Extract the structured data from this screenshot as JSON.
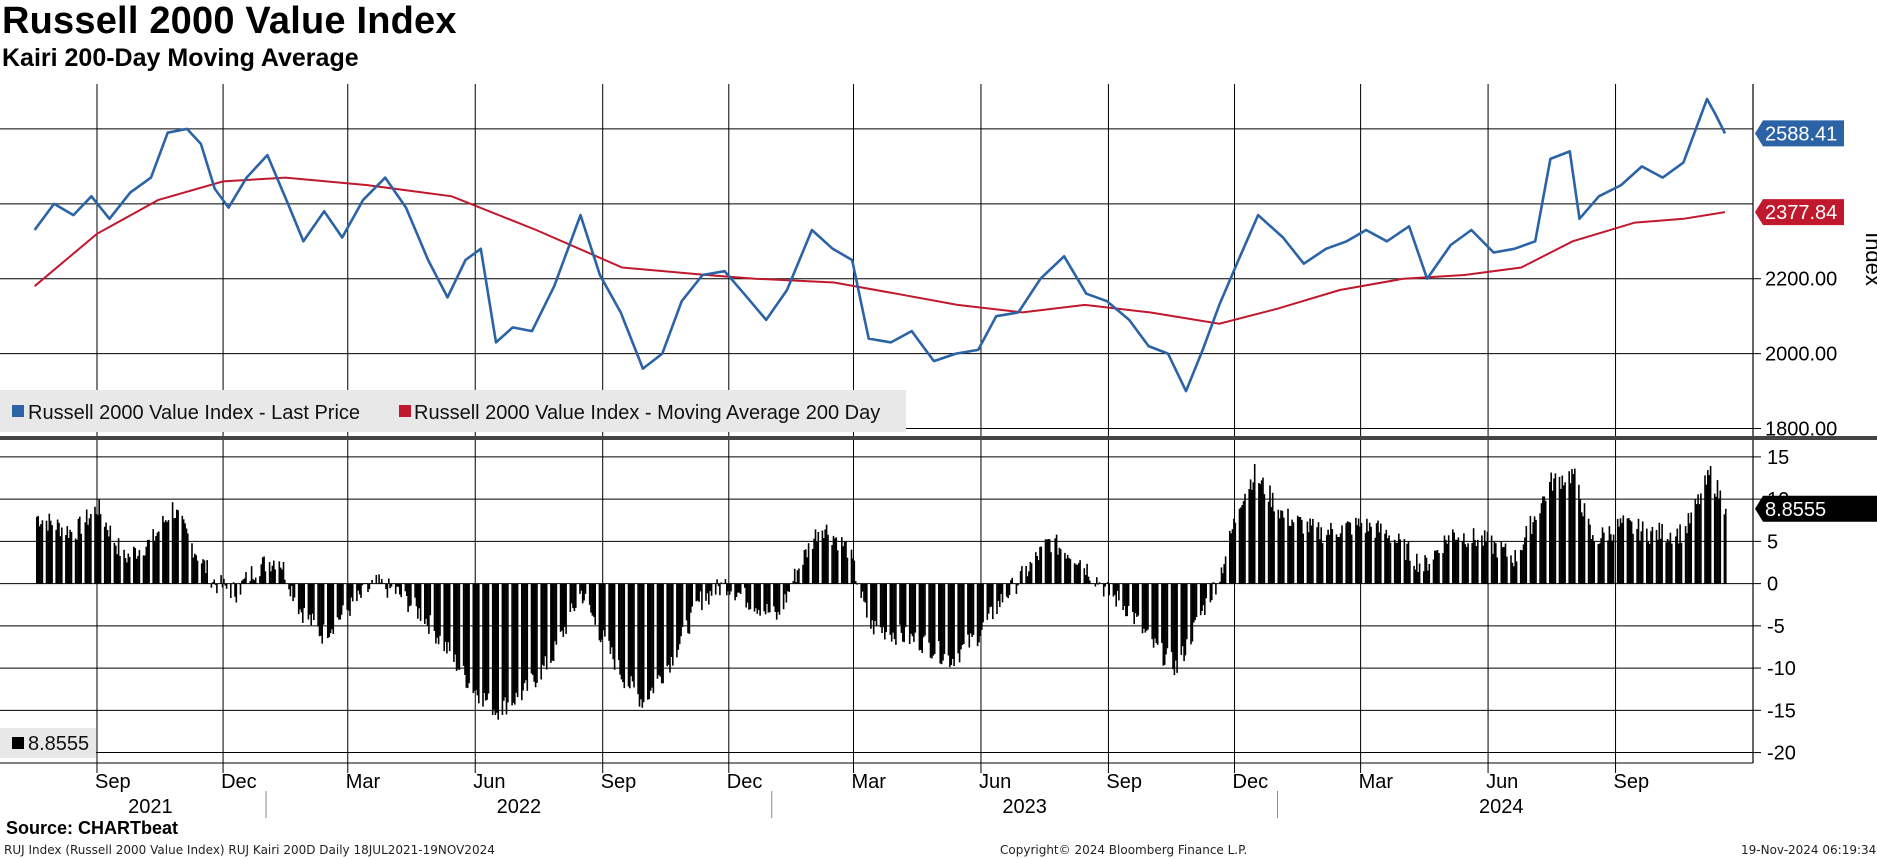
{
  "header": {
    "title": "Russell 2000 Value Index",
    "subtitle": "Kairi 200-Day Moving Average"
  },
  "footer": {
    "source": "Source: CHARTbeat",
    "left": "RUJ Index (Russell 2000 Value Index) RUJ Kairi 200D  Daily 18JUL2021-19NOV2024",
    "center": "Copyright© 2024 Bloomberg Finance L.P.",
    "right": "19-Nov-2024 06:19:34"
  },
  "colors": {
    "price": "#2b63a6",
    "ma": "#c0182c",
    "kairi": "#000000",
    "grid": "#000000"
  },
  "chart_data": [
    {
      "type": "line",
      "title": "",
      "ylabel": "Index",
      "ylim": [
        1780,
        2720
      ],
      "yticks": [
        1800,
        2000,
        2200
      ],
      "ytick_labels": [
        "1800.00",
        "2000.00",
        "2200.00"
      ],
      "legend_position": "bottom-left",
      "series": [
        {
          "name": "Russell 2000 Value Index - Last Price",
          "color": "#2b63a6",
          "last_value_label": "2588.41",
          "points": [
            [
              "2021-07-18",
              2330
            ],
            [
              "2021-08-01",
              2400
            ],
            [
              "2021-08-15",
              2370
            ],
            [
              "2021-08-28",
              2420
            ],
            [
              "2021-09-10",
              2360
            ],
            [
              "2021-09-25",
              2430
            ],
            [
              "2021-10-10",
              2470
            ],
            [
              "2021-10-22",
              2590
            ],
            [
              "2021-11-05",
              2600
            ],
            [
              "2021-11-15",
              2560
            ],
            [
              "2021-11-25",
              2440
            ],
            [
              "2021-12-05",
              2390
            ],
            [
              "2021-12-18",
              2470
            ],
            [
              "2022-01-02",
              2530
            ],
            [
              "2022-01-18",
              2390
            ],
            [
              "2022-01-28",
              2300
            ],
            [
              "2022-02-12",
              2380
            ],
            [
              "2022-02-25",
              2310
            ],
            [
              "2022-03-12",
              2410
            ],
            [
              "2022-03-28",
              2470
            ],
            [
              "2022-04-12",
              2390
            ],
            [
              "2022-04-28",
              2250
            ],
            [
              "2022-05-12",
              2150
            ],
            [
              "2022-05-25",
              2250
            ],
            [
              "2022-06-05",
              2280
            ],
            [
              "2022-06-16",
              2030
            ],
            [
              "2022-06-28",
              2070
            ],
            [
              "2022-07-12",
              2060
            ],
            [
              "2022-07-28",
              2180
            ],
            [
              "2022-08-16",
              2370
            ],
            [
              "2022-08-30",
              2210
            ],
            [
              "2022-09-14",
              2110
            ],
            [
              "2022-09-30",
              1960
            ],
            [
              "2022-10-14",
              2000
            ],
            [
              "2022-10-28",
              2140
            ],
            [
              "2022-11-12",
              2210
            ],
            [
              "2022-11-28",
              2220
            ],
            [
              "2022-12-12",
              2160
            ],
            [
              "2022-12-28",
              2090
            ],
            [
              "2023-01-12",
              2170
            ],
            [
              "2023-01-30",
              2330
            ],
            [
              "2023-02-14",
              2280
            ],
            [
              "2023-02-28",
              2250
            ],
            [
              "2023-03-12",
              2040
            ],
            [
              "2023-03-28",
              2030
            ],
            [
              "2023-04-12",
              2060
            ],
            [
              "2023-04-28",
              1980
            ],
            [
              "2023-05-14",
              2000
            ],
            [
              "2023-05-30",
              2010
            ],
            [
              "2023-06-12",
              2100
            ],
            [
              "2023-06-28",
              2110
            ],
            [
              "2023-07-14",
              2200
            ],
            [
              "2023-07-31",
              2260
            ],
            [
              "2023-08-16",
              2160
            ],
            [
              "2023-08-31",
              2140
            ],
            [
              "2023-09-16",
              2090
            ],
            [
              "2023-09-30",
              2020
            ],
            [
              "2023-10-14",
              2000
            ],
            [
              "2023-10-27",
              1900
            ],
            [
              "2023-11-08",
              2010
            ],
            [
              "2023-11-20",
              2130
            ],
            [
              "2023-12-05",
              2260
            ],
            [
              "2023-12-18",
              2370
            ],
            [
              "2024-01-05",
              2310
            ],
            [
              "2024-01-20",
              2240
            ],
            [
              "2024-02-05",
              2280
            ],
            [
              "2024-02-20",
              2300
            ],
            [
              "2024-03-05",
              2330
            ],
            [
              "2024-03-20",
              2300
            ],
            [
              "2024-04-05",
              2340
            ],
            [
              "2024-04-18",
              2200
            ],
            [
              "2024-05-05",
              2290
            ],
            [
              "2024-05-20",
              2330
            ],
            [
              "2024-06-05",
              2270
            ],
            [
              "2024-06-20",
              2280
            ],
            [
              "2024-07-05",
              2300
            ],
            [
              "2024-07-16",
              2520
            ],
            [
              "2024-07-30",
              2540
            ],
            [
              "2024-08-06",
              2360
            ],
            [
              "2024-08-20",
              2420
            ],
            [
              "2024-09-05",
              2450
            ],
            [
              "2024-09-20",
              2500
            ],
            [
              "2024-10-05",
              2470
            ],
            [
              "2024-10-20",
              2510
            ],
            [
              "2024-11-06",
              2680
            ],
            [
              "2024-11-12",
              2640
            ],
            [
              "2024-11-19",
              2588
            ]
          ]
        },
        {
          "name": "Russell 2000 Value Index - Moving Average 200 Day",
          "color": "#c0182c",
          "last_value_label": "2377.84",
          "points": [
            [
              "2021-07-18",
              2180
            ],
            [
              "2021-09-01",
              2320
            ],
            [
              "2021-10-15",
              2410
            ],
            [
              "2021-12-01",
              2460
            ],
            [
              "2022-01-15",
              2470
            ],
            [
              "2022-03-15",
              2450
            ],
            [
              "2022-05-15",
              2420
            ],
            [
              "2022-07-15",
              2330
            ],
            [
              "2022-09-15",
              2230
            ],
            [
              "2022-11-15",
              2210
            ],
            [
              "2022-12-20",
              2200
            ],
            [
              "2023-02-15",
              2190
            ],
            [
              "2023-04-01",
              2160
            ],
            [
              "2023-05-15",
              2130
            ],
            [
              "2023-07-01",
              2110
            ],
            [
              "2023-08-15",
              2130
            ],
            [
              "2023-10-01",
              2110
            ],
            [
              "2023-11-20",
              2080
            ],
            [
              "2024-01-01",
              2120
            ],
            [
              "2024-02-15",
              2170
            ],
            [
              "2024-04-01",
              2200
            ],
            [
              "2024-05-15",
              2210
            ],
            [
              "2024-06-25",
              2230
            ],
            [
              "2024-08-01",
              2300
            ],
            [
              "2024-09-15",
              2350
            ],
            [
              "2024-10-20",
              2360
            ],
            [
              "2024-11-19",
              2378
            ]
          ]
        }
      ]
    },
    {
      "type": "bar",
      "title": "",
      "ylim": [
        -21,
        17
      ],
      "yticks": [
        15,
        10,
        5,
        0,
        -5,
        -10,
        -15,
        -20
      ],
      "ytick_labels": [
        "15",
        "10",
        "5",
        "0",
        "-5",
        "-10",
        "-15",
        "-20"
      ],
      "legend_position": "bottom-left",
      "series": [
        {
          "name": "",
          "legend_label": "8.8555",
          "color": "#000000",
          "last_value_label": "8.8555",
          "points": [
            [
              "2021-07-18",
              8
            ],
            [
              "2021-08-15",
              6
            ],
            [
              "2021-09-01",
              9
            ],
            [
              "2021-09-20",
              3
            ],
            [
              "2021-10-10",
              5
            ],
            [
              "2021-10-25",
              9
            ],
            [
              "2021-11-10",
              4
            ],
            [
              "2021-11-25",
              0
            ],
            [
              "2021-12-10",
              -1
            ],
            [
              "2021-12-25",
              2
            ],
            [
              "2022-01-10",
              3
            ],
            [
              "2022-01-25",
              -3
            ],
            [
              "2022-02-10",
              -6
            ],
            [
              "2022-03-01",
              -3
            ],
            [
              "2022-03-20",
              0
            ],
            [
              "2022-04-05",
              -1
            ],
            [
              "2022-04-25",
              -4
            ],
            [
              "2022-05-12",
              -8
            ],
            [
              "2022-05-28",
              -12
            ],
            [
              "2022-06-16",
              -15
            ],
            [
              "2022-07-05",
              -13
            ],
            [
              "2022-07-25",
              -9
            ],
            [
              "2022-08-16",
              -1
            ],
            [
              "2022-08-30",
              -6
            ],
            [
              "2022-09-15",
              -11
            ],
            [
              "2022-09-30",
              -14
            ],
            [
              "2022-10-20",
              -9
            ],
            [
              "2022-11-10",
              -2
            ],
            [
              "2022-11-28",
              0
            ],
            [
              "2022-12-15",
              -2
            ],
            [
              "2023-01-05",
              -4
            ],
            [
              "2023-01-20",
              2
            ],
            [
              "2023-02-05",
              7
            ],
            [
              "2023-02-25",
              4
            ],
            [
              "2023-03-12",
              -5
            ],
            [
              "2023-04-01",
              -6
            ],
            [
              "2023-04-20",
              -7
            ],
            [
              "2023-05-10",
              -9
            ],
            [
              "2023-05-30",
              -6
            ],
            [
              "2023-06-15",
              -2
            ],
            [
              "2023-07-01",
              1
            ],
            [
              "2023-07-20",
              5
            ],
            [
              "2023-08-10",
              3
            ],
            [
              "2023-08-31",
              -1
            ],
            [
              "2023-09-15",
              -3
            ],
            [
              "2023-10-01",
              -7
            ],
            [
              "2023-10-20",
              -10
            ],
            [
              "2023-11-05",
              -4
            ],
            [
              "2023-11-20",
              1
            ],
            [
              "2023-12-05",
              10
            ],
            [
              "2023-12-15",
              13
            ],
            [
              "2024-01-05",
              8
            ],
            [
              "2024-02-01",
              6
            ],
            [
              "2024-03-01",
              7
            ],
            [
              "2024-03-20",
              6
            ],
            [
              "2024-04-15",
              2
            ],
            [
              "2024-05-05",
              6
            ],
            [
              "2024-05-30",
              5
            ],
            [
              "2024-06-20",
              3
            ],
            [
              "2024-07-16",
              12
            ],
            [
              "2024-08-01",
              13
            ],
            [
              "2024-08-15",
              5
            ],
            [
              "2024-09-05",
              7
            ],
            [
              "2024-09-25",
              6
            ],
            [
              "2024-10-20",
              6
            ],
            [
              "2024-11-08",
              13
            ],
            [
              "2024-11-19",
              8.8555
            ]
          ]
        }
      ]
    }
  ],
  "x_axis": {
    "month_ticks": [
      {
        "date": "2021-09-01",
        "label": "Sep"
      },
      {
        "date": "2021-12-01",
        "label": "Dec"
      },
      {
        "date": "2022-03-01",
        "label": "Mar"
      },
      {
        "date": "2022-06-01",
        "label": "Jun"
      },
      {
        "date": "2022-09-01",
        "label": "Sep"
      },
      {
        "date": "2022-12-01",
        "label": "Dec"
      },
      {
        "date": "2023-03-01",
        "label": "Mar"
      },
      {
        "date": "2023-06-01",
        "label": "Jun"
      },
      {
        "date": "2023-09-01",
        "label": "Sep"
      },
      {
        "date": "2023-12-01",
        "label": "Dec"
      },
      {
        "date": "2024-03-01",
        "label": "Mar"
      },
      {
        "date": "2024-06-01",
        "label": "Jun"
      },
      {
        "date": "2024-09-01",
        "label": "Sep"
      }
    ],
    "years": [
      {
        "label": "2021",
        "start": "2021-07-18",
        "end": "2022-01-01"
      },
      {
        "label": "2022",
        "start": "2022-01-01",
        "end": "2023-01-01"
      },
      {
        "label": "2023",
        "start": "2023-01-01",
        "end": "2024-01-01"
      },
      {
        "label": "2024",
        "start": "2024-01-01",
        "end": "2024-11-19"
      }
    ]
  }
}
